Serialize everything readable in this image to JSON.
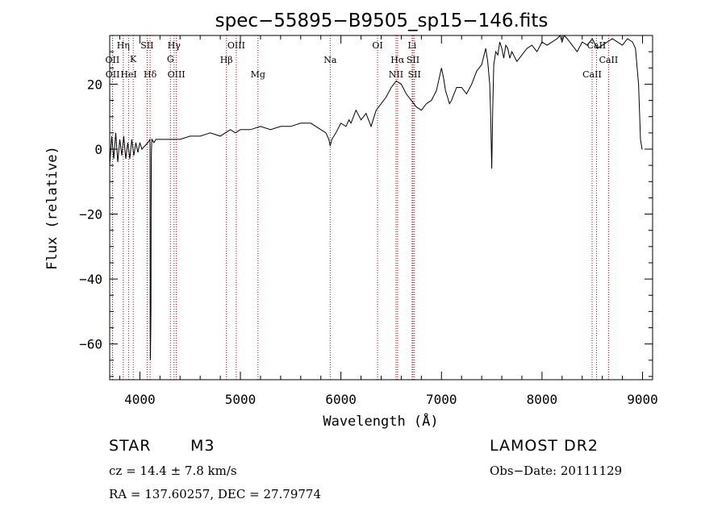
{
  "chart_data": {
    "type": "line",
    "title": "spec−55895−B9505_sp15−146.fits",
    "xlabel": "Wavelength (Å)",
    "ylabel": "Flux (relative)",
    "xlim": [
      3700,
      9100
    ],
    "ylim": [
      -71,
      35
    ],
    "xticks": [
      4000,
      5000,
      6000,
      7000,
      8000,
      9000
    ],
    "yticks": [
      20,
      0,
      -20,
      -40,
      -60
    ],
    "xtick_labels": [
      "4000",
      "5000",
      "6000",
      "7000",
      "8000",
      "9000"
    ],
    "ytick_labels": [
      "20",
      "0",
      "−20",
      "−40",
      "−60"
    ],
    "line_color": "#000000",
    "marker_color": "#cc0000",
    "grid": false,
    "lines": [
      {
        "label": "OII",
        "x": 3727,
        "row": 2
      },
      {
        "label": "OII",
        "x": 3729,
        "row": 3
      },
      {
        "label": "Hη",
        "x": 3835,
        "row": 0
      },
      {
        "label": "K",
        "x": 3934,
        "row": 1
      },
      {
        "label": "HeI",
        "x": 3889,
        "row": 3
      },
      {
        "label": "SII",
        "x": 4072,
        "row": 0
      },
      {
        "label": "Hδ",
        "x": 4102,
        "row": 3
      },
      {
        "label": "Hγ",
        "x": 4340,
        "row": 0
      },
      {
        "label": "G",
        "x": 4304,
        "row": 1
      },
      {
        "label": "OIII",
        "x": 4363,
        "row": 3
      },
      {
        "label": "OIII",
        "x": 4959,
        "row": 0
      },
      {
        "label": "Hβ",
        "x": 4861,
        "row": 2
      },
      {
        "label": "Mg",
        "x": 5175,
        "row": 3
      },
      {
        "label": "Na",
        "x": 5893,
        "row": 2
      },
      {
        "label": "OI",
        "x": 6364,
        "row": 0
      },
      {
        "label": "Hα",
        "x": 6563,
        "row": 2
      },
      {
        "label": "NII",
        "x": 6548,
        "row": 3
      },
      {
        "label": "Li",
        "x": 6708,
        "row": 0
      },
      {
        "label": "SII",
        "x": 6717,
        "row": 2
      },
      {
        "label": "SII",
        "x": 6731,
        "row": 3
      },
      {
        "label": "CaII",
        "x": 8542,
        "row": 0
      },
      {
        "label": "CaII",
        "x": 8662,
        "row": 2
      },
      {
        "label": "CaII",
        "x": 8498,
        "row": 3
      }
    ],
    "series": [
      {
        "x": [
          3700,
          3720,
          3740,
          3760,
          3780,
          3800,
          3820,
          3840,
          3860,
          3880,
          3900,
          3920,
          3940,
          3960,
          3980,
          4000,
          4020,
          4050,
          4080,
          4100,
          4101,
          4102,
          4103,
          4104,
          4106,
          4108,
          4110,
          4111,
          4112,
          4113,
          4114,
          4116,
          4120,
          4140,
          4160,
          4200,
          4250,
          4300,
          4350,
          4400,
          4500,
          4600,
          4700,
          4800,
          4850,
          4900,
          4950,
          5000,
          5100,
          5200,
          5300,
          5400,
          5500,
          5600,
          5700,
          5750,
          5800,
          5850,
          5880,
          5893,
          5910,
          5950,
          6000,
          6050,
          6080,
          6100,
          6150,
          6200,
          6250,
          6300,
          6350,
          6400,
          6450,
          6500,
          6550,
          6600,
          6650,
          6700,
          6750,
          6800,
          6850,
          6900,
          6950,
          7000,
          7020,
          7040,
          7060,
          7080,
          7100,
          7150,
          7200,
          7250,
          7300,
          7350,
          7400,
          7440,
          7460,
          7480,
          7490,
          7500,
          7510,
          7520,
          7540,
          7560,
          7580,
          7600,
          7620,
          7640,
          7660,
          7680,
          7700,
          7750,
          7800,
          7850,
          7900,
          7950,
          8000,
          8050,
          8100,
          8150,
          8180,
          8200,
          8220,
          8250,
          8300,
          8350,
          8400,
          8450,
          8500,
          8550,
          8600,
          8650,
          8700,
          8750,
          8800,
          8850,
          8900,
          8930,
          8960,
          8980,
          8990,
          8995,
          9000
        ],
        "y": [
          -5,
          4,
          -3,
          5,
          -4,
          3,
          -2,
          4,
          -3,
          2,
          -3,
          3,
          -2,
          2,
          -1,
          2,
          0,
          1,
          2,
          3,
          0,
          -12,
          -55,
          -65,
          -62,
          -58,
          -50,
          -40,
          -20,
          -8,
          -3,
          0,
          3,
          2,
          3,
          3,
          3,
          3,
          3,
          3,
          4,
          4,
          5,
          4,
          5,
          6,
          5,
          6,
          6,
          7,
          6,
          7,
          7,
          8,
          8,
          7,
          6,
          5,
          3,
          1,
          3,
          5,
          8,
          7,
          9,
          8,
          12,
          9,
          11,
          7,
          12,
          14,
          16,
          19,
          21,
          20,
          17,
          15,
          13,
          12,
          14,
          15,
          18,
          25,
          22,
          18,
          16,
          14,
          15,
          19,
          19,
          17,
          20,
          24,
          26,
          31,
          27,
          20,
          10,
          -6,
          12,
          26,
          30,
          29,
          33,
          31,
          28,
          32,
          31,
          28,
          30,
          27,
          29,
          31,
          32,
          30,
          33,
          32,
          33,
          34,
          35,
          33,
          35,
          34,
          32,
          30,
          33,
          32,
          34,
          31,
          32,
          33,
          34,
          33,
          32,
          34,
          33,
          31,
          20,
          3,
          1,
          0,
          0
        ]
      }
    ],
    "object_class": "STAR",
    "subclass": "M3",
    "survey": "LAMOST DR2",
    "redshift_text": "cz = 14.4 ± 7.8 km/s",
    "obs_date_text": "Obs−Date: 20111129",
    "coords_text": "RA = 137.60257, DEC =  27.79774"
  }
}
